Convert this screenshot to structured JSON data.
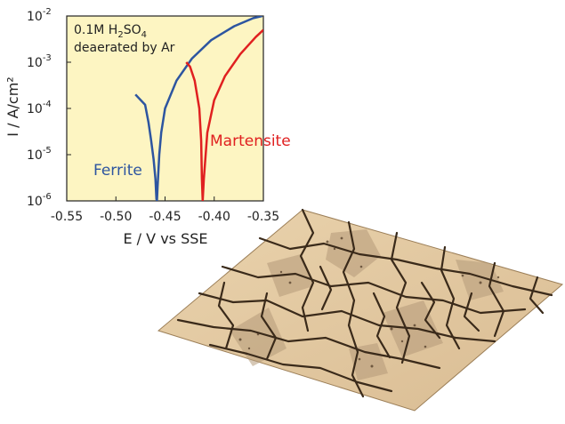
{
  "chart_data": {
    "type": "line",
    "xlabel": "E / V vs SSE",
    "ylabel": "I / A/cm²",
    "xscale": "linear",
    "yscale": "log",
    "xlim": [
      -0.55,
      -0.35
    ],
    "ylim": [
      1e-06,
      0.01
    ],
    "x_ticks": [
      "-0.55",
      "-0.50",
      "-0.45",
      "-0.40",
      "-0.35"
    ],
    "y_ticks": [
      {
        "base": "10",
        "exp": "-6"
      },
      {
        "base": "10",
        "exp": "-5"
      },
      {
        "base": "10",
        "exp": "-4"
      },
      {
        "base": "10",
        "exp": "-3"
      },
      {
        "base": "10",
        "exp": "-2"
      }
    ],
    "annotation": {
      "line1": {
        "pre": "0.1M H",
        "sub1": "2",
        "mid": "SO",
        "sub2": "4"
      },
      "line2": "deaerated by Ar"
    },
    "plot_background": "#fdf5c2",
    "grid": false,
    "series": [
      {
        "name": "Ferrite",
        "color": "#2d55a0",
        "x": [
          -0.4801,
          -0.4703,
          -0.4668,
          -0.4641,
          -0.4617,
          -0.4598,
          -0.4588,
          -0.4582,
          -0.4576,
          -0.4559,
          -0.4539,
          -0.45,
          -0.4383,
          -0.4227,
          -0.4031,
          -0.3797,
          -0.3602,
          -0.3512
        ],
        "y": [
          0.0002,
          0.00012,
          5e-05,
          2e-05,
          8e-06,
          3e-06,
          1.1e-06,
          1e-06,
          2e-06,
          1e-05,
          3e-05,
          0.0001,
          0.0004,
          0.0012,
          0.003,
          0.006,
          0.009,
          0.01
        ]
      },
      {
        "name": "Martensite",
        "color": "#e02020",
        "x": [
          -0.4285,
          -0.4246,
          -0.4199,
          -0.4152,
          -0.4133,
          -0.4125,
          -0.4117,
          -0.4105,
          -0.407,
          -0.4,
          -0.3891,
          -0.3734,
          -0.3578,
          -0.35
        ],
        "y": [
          0.001,
          0.0008,
          0.0004,
          0.0001,
          2e-05,
          3e-06,
          1e-06,
          3e-06,
          3e-05,
          0.00015,
          0.0005,
          0.0015,
          0.0035,
          0.005
        ]
      }
    ]
  }
}
